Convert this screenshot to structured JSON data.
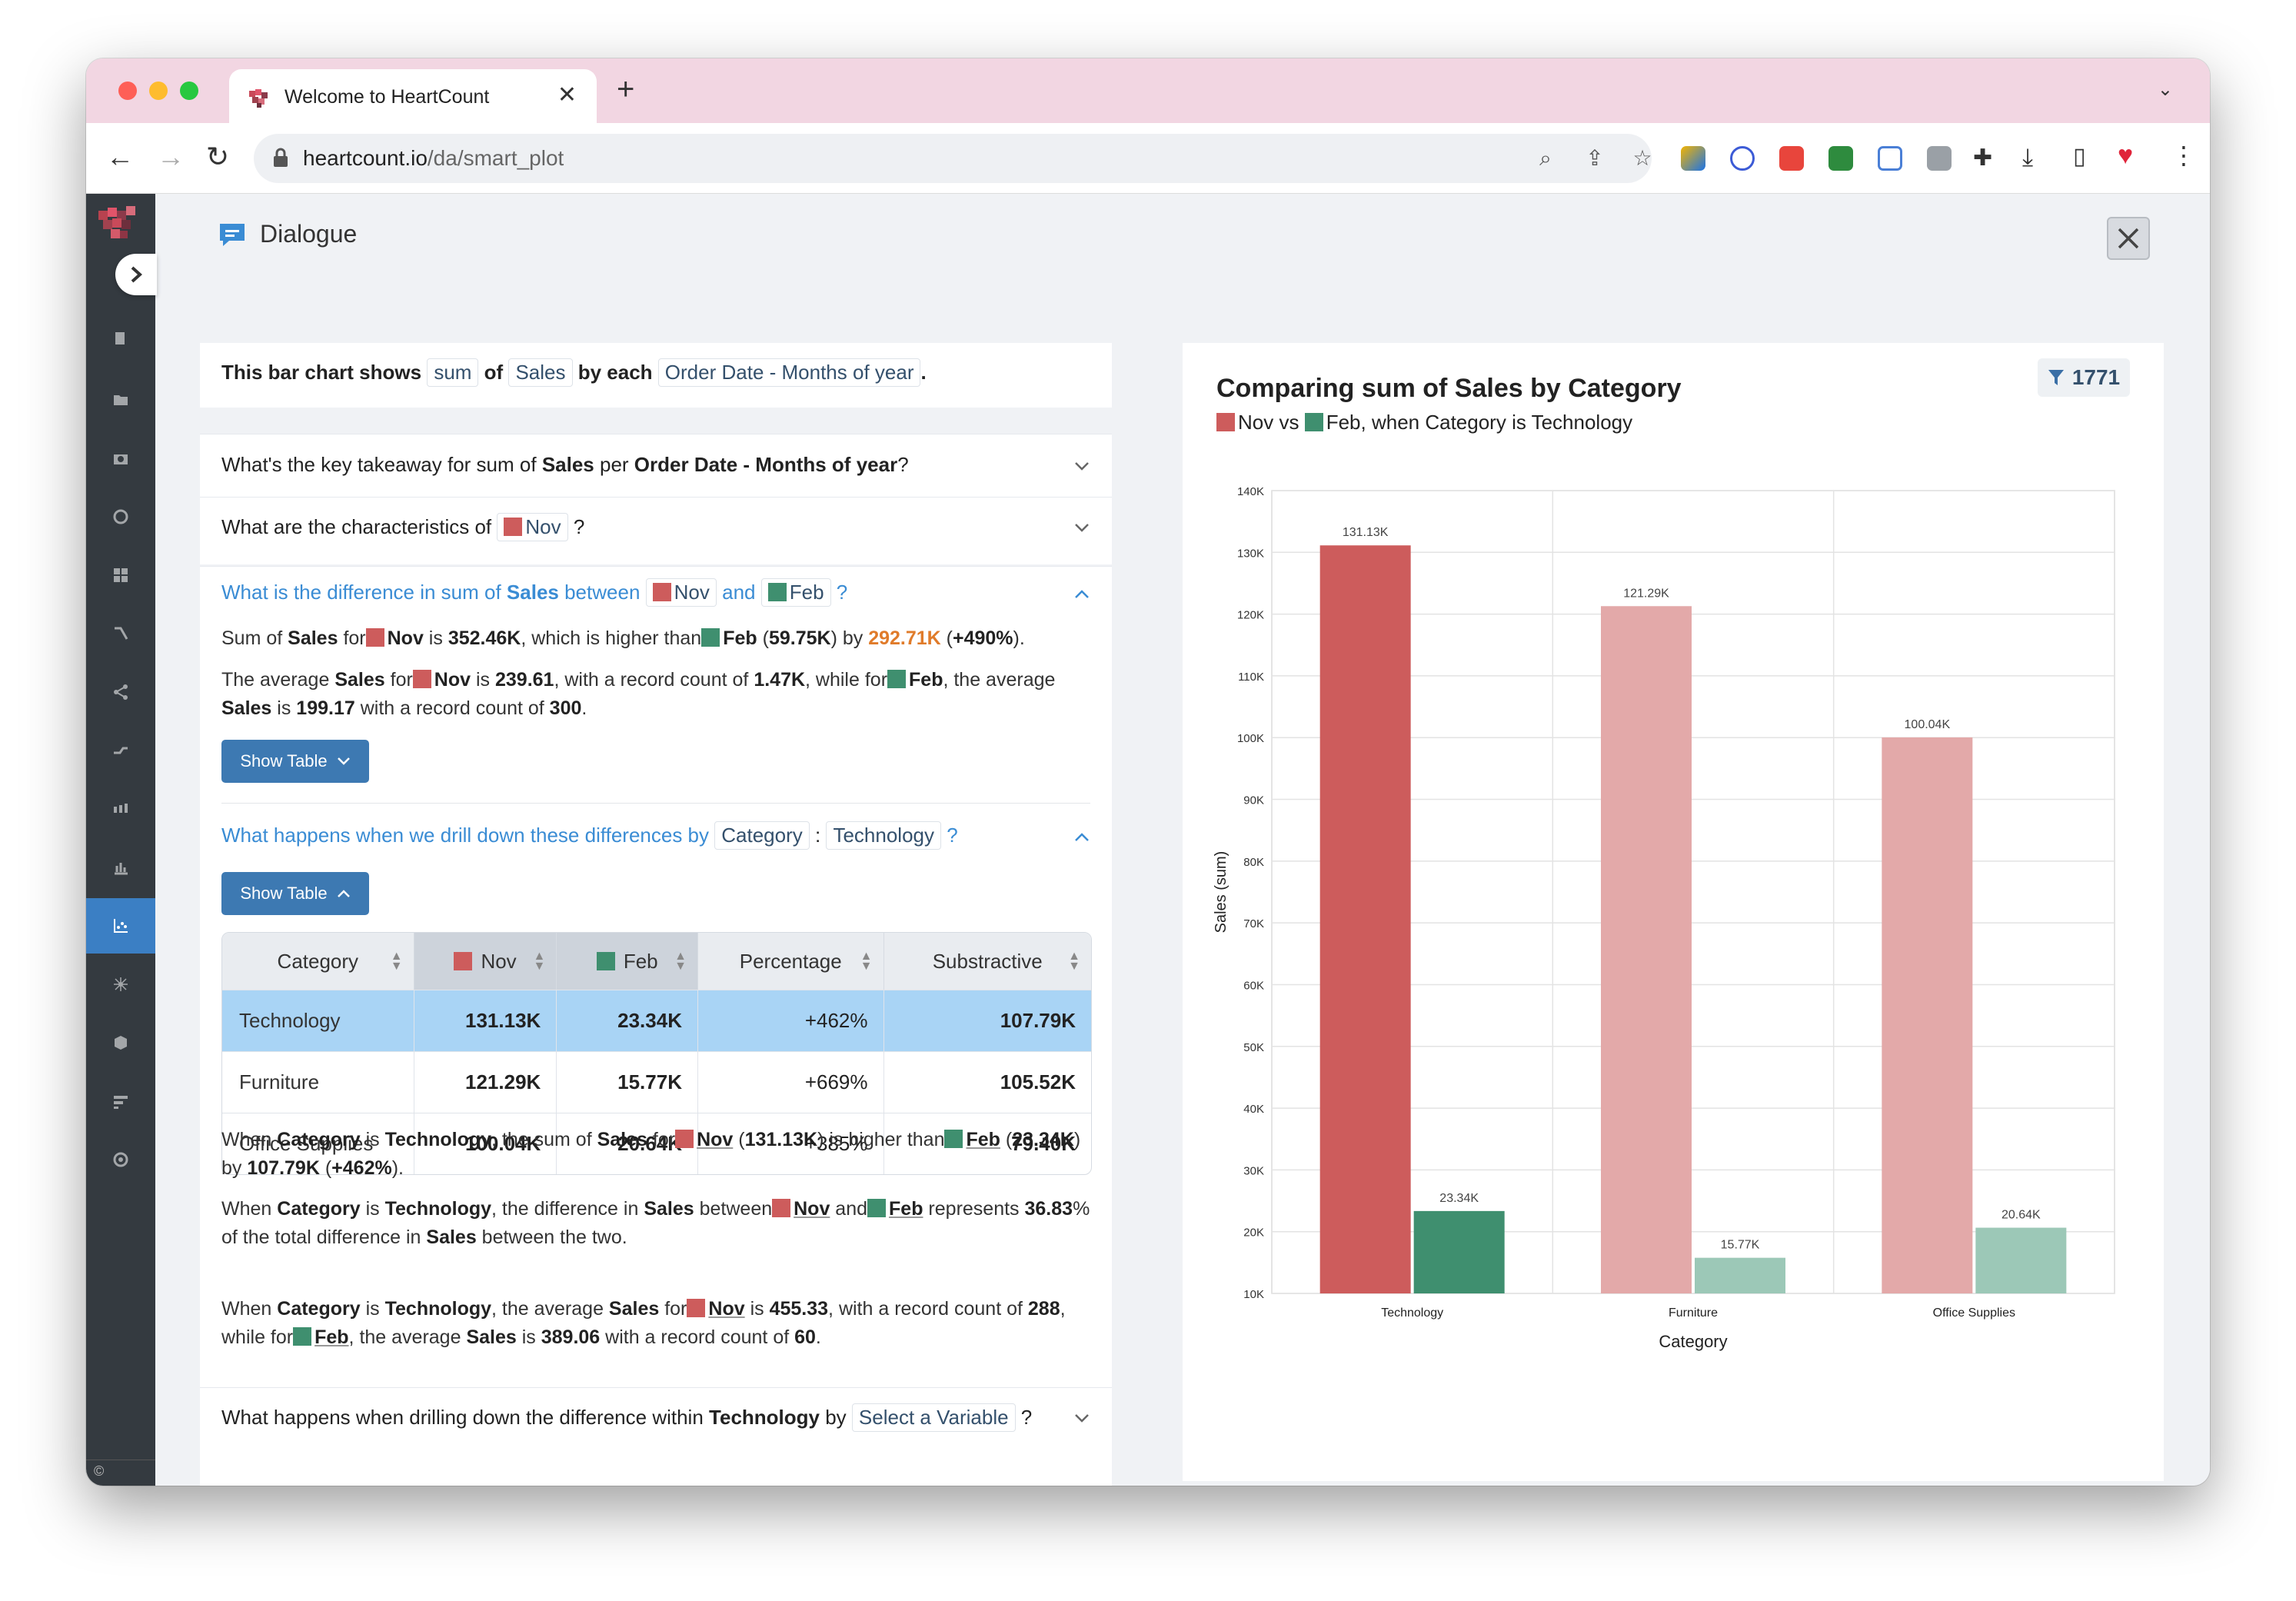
{
  "browser": {
    "tab_title": "Welcome to HeartCount",
    "url_domain": "heartcount.io",
    "url_path": "/da/smart_plot"
  },
  "dialogue": {
    "title": "Dialogue"
  },
  "summary": {
    "prefix": "This bar chart shows",
    "agg": "sum",
    "of": "of",
    "measure": "Sales",
    "by_each": "by each",
    "dimension": "Order Date - Months of year",
    "end": "."
  },
  "questions": {
    "q1": {
      "a": "What's the key takeaway for sum of ",
      "b": "Sales",
      "c": " per ",
      "d": "Order Date - Months of year",
      "e": "?"
    },
    "q2": {
      "a": "What are the characteristics of",
      "chip": "Nov",
      "end": "?"
    },
    "q3": {
      "a": "What is the difference in sum of ",
      "b": "Sales",
      "c": " between",
      "nov": "Nov",
      "and": "and",
      "feb": "Feb",
      "end": "?"
    },
    "q4": {
      "a": "What happens when we drill down these differences by",
      "chip1": "Category",
      "colon": ":",
      "chip2": "Technology",
      "end": "?"
    },
    "q5": {
      "a": "What happens when drilling down the difference within ",
      "b": "Technology",
      "c": " by",
      "chip": "Select a Variable",
      "end": "?"
    }
  },
  "answer3": {
    "p1": {
      "t1": "Sum of ",
      "t2": "Sales",
      "t3": " for",
      "t4": "Nov",
      "t5": " is ",
      "t6": "352.46K",
      "t7": ", which is higher than",
      "t8": "Feb",
      "t9": " (",
      "t10": "59.75K",
      "t11": ") by ",
      "t12": "292.71K",
      "t13": " (",
      "t14": "+490%",
      "t15": ")."
    },
    "p2": {
      "t1": "The average ",
      "t2": "Sales",
      "t3": " for",
      "t4": "Nov",
      "t5": " is ",
      "t6": "239.61",
      "t7": ", with a record count of ",
      "t8": "1.47K",
      "t9": ", while for",
      "t10": "Feb",
      "t11": ", the average ",
      "t12": "Sales",
      "t13": " is ",
      "t14": "199.17",
      "t15": " with a record count of ",
      "t16": "300",
      "t17": "."
    },
    "show_table": "Show Table"
  },
  "answer4": {
    "show_table": "Show Table",
    "table": {
      "headers": [
        "Category",
        "Nov",
        "Feb",
        "Percentage",
        "Substractive"
      ],
      "rows": [
        [
          "Technology",
          "131.13K",
          "23.34K",
          "+462%",
          "107.79K"
        ],
        [
          "Furniture",
          "121.29K",
          "15.77K",
          "+669%",
          "105.52K"
        ],
        [
          "Office Supplies",
          "100.04K",
          "20.64K",
          "+385%",
          "79.40K"
        ]
      ]
    },
    "p1": {
      "t1": "When ",
      "t2": "Category",
      "t3": " is ",
      "t4": "Technology",
      "t5": ", the sum of ",
      "t6": "Sales",
      "t7": " for",
      "t8": "Nov",
      "t9": " (",
      "t10": "131.13K",
      "t11": ") is higher than",
      "t12": "Feb",
      "t13": " (",
      "t14": "23.34K",
      "t15": ") by ",
      "t16": "107.79K",
      "t17": " (",
      "t18": "+462%",
      "t19": ")."
    },
    "p2": {
      "t1": "When ",
      "t2": "Category",
      "t3": " is ",
      "t4": "Technology",
      "t5": ", the difference in ",
      "t6": "Sales",
      "t7": " between",
      "t8": "Nov",
      "t9": " and",
      "t10": "Feb",
      "t11": " represents ",
      "t12": "36.83",
      "t13": "% of the total difference in ",
      "t14": "Sales",
      "t15": " between the two."
    },
    "p3": {
      "t1": "When ",
      "t2": "Category",
      "t3": " is ",
      "t4": "Technology",
      "t5": ", the average ",
      "t6": "Sales",
      "t7": " for",
      "t8": "Nov",
      "t9": " is ",
      "t10": "455.33",
      "t11": ", with a record count of ",
      "t12": "288",
      "t13": ", while for",
      "t14": "Feb",
      "t15": ", the average ",
      "t16": "Sales",
      "t17": " is ",
      "t18": "389.06",
      "t19": " with a record count of ",
      "t20": "60",
      "t21": "."
    }
  },
  "chart_panel": {
    "title": "Comparing sum of Sales by Category",
    "sub_nov": "Nov",
    "sub_vs": " vs ",
    "sub_feb": "Feb",
    "sub_rest": ", when Category is Technology",
    "filter_count": "1771"
  },
  "colors": {
    "nov": "#cd5c5c",
    "feb": "#3f8f6f",
    "nov_faded": "#e3a9a9",
    "feb_faded": "#9cc8b7",
    "accent": "#3d79b2",
    "tab_strip": "#f2d6e2"
  },
  "chart_data": {
    "type": "bar",
    "xlabel": "Category",
    "ylabel": "Sales (sum)",
    "categories": [
      "Technology",
      "Furniture",
      "Office Supplies"
    ],
    "series": [
      {
        "name": "Nov",
        "values": [
          131130,
          121290,
          100040
        ]
      },
      {
        "name": "Feb",
        "values": [
          23340,
          15770,
          20640
        ]
      }
    ],
    "data_labels": [
      [
        "131.13K",
        "121.29K",
        "100.04K"
      ],
      [
        "23.34K",
        "15.77K",
        "20.64K"
      ]
    ],
    "highlighted_category": "Technology",
    "ylim": [
      10000,
      140000
    ],
    "yticks": [
      10000,
      20000,
      30000,
      40000,
      50000,
      60000,
      70000,
      80000,
      90000,
      100000,
      110000,
      120000,
      130000,
      140000
    ],
    "ytick_labels": [
      "10K",
      "20K",
      "30K",
      "40K",
      "50K",
      "60K",
      "70K",
      "80K",
      "90K",
      "100K",
      "110K",
      "120K",
      "130K",
      "140K"
    ],
    "grid": true
  }
}
